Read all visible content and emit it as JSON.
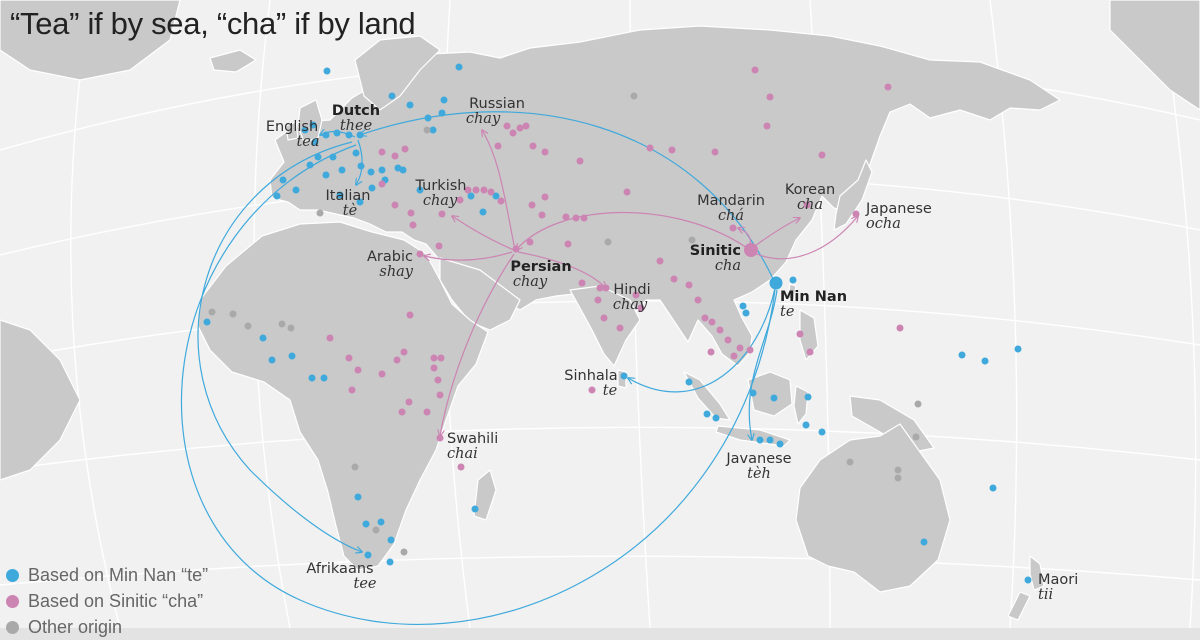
{
  "title": "“Tea” if by sea, “cha” if by land",
  "colors": {
    "te": "#3fa9dc",
    "cha": "#cc84b3",
    "other": "#a9a9a9",
    "land": "#c9c9c9",
    "sea": "#f1f1f1"
  },
  "legend": [
    {
      "label": "Based on Min Nan “te”",
      "color": "#3fa9dc"
    },
    {
      "label": "Based on Sinitic “cha”",
      "color": "#cc84b3"
    },
    {
      "label": "Other origin",
      "color": "#a9a9a9"
    }
  ],
  "labels": [
    {
      "word": "Dutch",
      "translit": "thee",
      "bold": true
    },
    {
      "word": "English",
      "translit": "tea",
      "bold": false
    },
    {
      "word": "Russian",
      "translit": "chay",
      "bold": false
    },
    {
      "word": "Italian",
      "translit": "tè",
      "bold": false
    },
    {
      "word": "Turkish",
      "translit": "chay",
      "bold": false
    },
    {
      "word": "Arabic",
      "translit": "shay",
      "bold": false
    },
    {
      "word": "Persian",
      "translit": "chay",
      "bold": true
    },
    {
      "word": "Hindi",
      "translit": "chay",
      "bold": false
    },
    {
      "word": "Mandarin",
      "translit": "chá",
      "bold": false
    },
    {
      "word": "Korean",
      "translit": "cha",
      "bold": false
    },
    {
      "word": "Japanese",
      "translit": "ocha",
      "bold": false
    },
    {
      "word": "Sinitic",
      "translit": "cha",
      "bold": true
    },
    {
      "word": "Min Nan",
      "translit": "te",
      "bold": true
    },
    {
      "word": "Sinhala",
      "translit": "te",
      "bold": false
    },
    {
      "word": "Swahili",
      "translit": "chai",
      "bold": false
    },
    {
      "word": "Javanese",
      "translit": "tèh",
      "bold": false
    },
    {
      "word": "Afrikaans",
      "translit": "tee",
      "bold": false
    },
    {
      "word": "Maori",
      "translit": "tii",
      "bold": false
    }
  ]
}
